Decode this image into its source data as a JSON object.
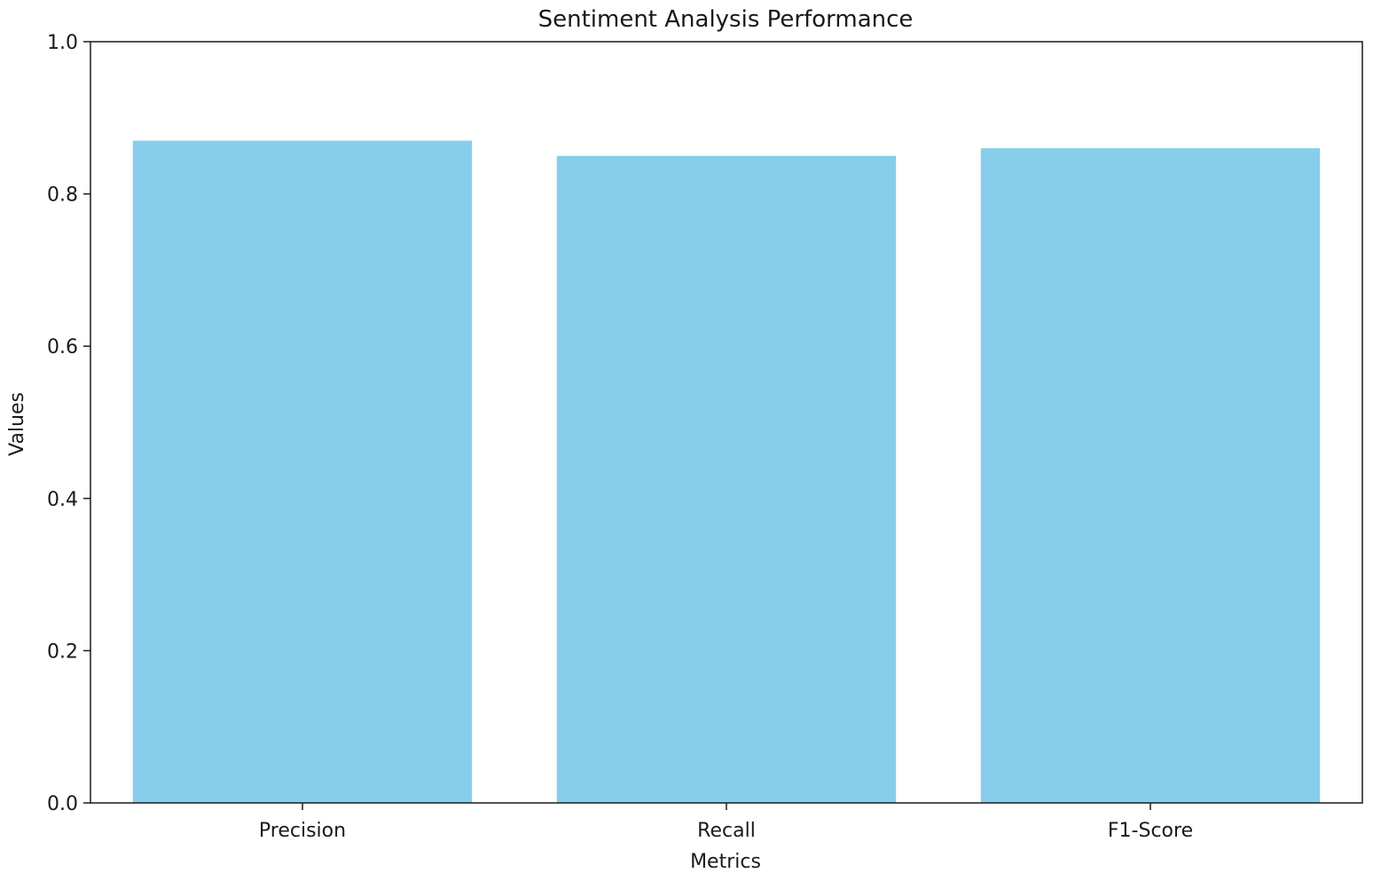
{
  "chart_data": {
    "type": "bar",
    "title": "Sentiment Analysis Performance",
    "xlabel": "Metrics",
    "ylabel": "Values",
    "categories": [
      "Precision",
      "Recall",
      "F1-Score"
    ],
    "values": [
      0.87,
      0.85,
      0.86
    ],
    "ylim": [
      0,
      1.0
    ],
    "yticks": [
      "0.0",
      "0.2",
      "0.4",
      "0.6",
      "0.8",
      "1.0"
    ],
    "grid": false,
    "legend": false,
    "bar_color": "#87ceeb"
  }
}
